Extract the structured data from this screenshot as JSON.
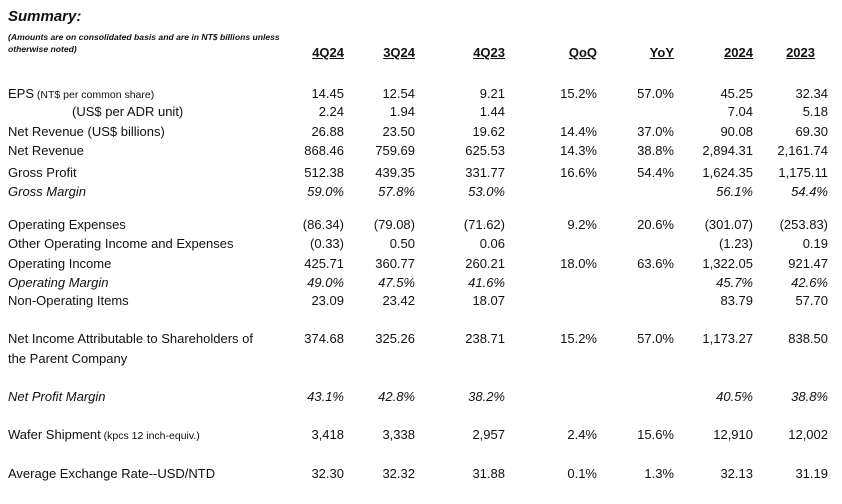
{
  "title": "Summary:",
  "note": "(Amounts are on consolidated basis and are in NT$ billions unless otherwise noted)",
  "columns": [
    "4Q24",
    "3Q24",
    "4Q23",
    "QoQ",
    "YoY",
    "2024",
    "2023"
  ],
  "rows": [
    {
      "label": "EPS",
      "sub": " (NT$ per common share)",
      "values": [
        "14.45",
        "12.54",
        "9.21",
        "15.2%",
        "57.0%",
        "45.25",
        "32.34"
      ]
    },
    {
      "label": "(US$ per ADR unit)",
      "values": [
        "2.24",
        "1.94",
        "1.44",
        "",
        "",
        "7.04",
        "5.18"
      ]
    },
    {
      "label": "Net Revenue (US$ billions)",
      "values": [
        "26.88",
        "23.50",
        "19.62",
        "14.4%",
        "37.0%",
        "90.08",
        "69.30"
      ]
    },
    {
      "label": "Net Revenue",
      "values": [
        "868.46",
        "759.69",
        "625.53",
        "14.3%",
        "38.8%",
        "2,894.31",
        "2,161.74"
      ]
    },
    {
      "label": "Gross Profit",
      "values": [
        "512.38",
        "439.35",
        "331.77",
        "16.6%",
        "54.4%",
        "1,624.35",
        "1,175.11"
      ]
    },
    {
      "label": "Gross Margin",
      "values": [
        "59.0%",
        "57.8%",
        "53.0%",
        "",
        "",
        "56.1%",
        "54.4%"
      ]
    },
    {
      "label": "Operating Expenses",
      "values": [
        "(86.34)",
        "(79.08)",
        "(71.62)",
        "9.2%",
        "20.6%",
        "(301.07)",
        "(253.83)"
      ]
    },
    {
      "label": "Other Operating Income and Expenses",
      "values": [
        "(0.33)",
        "0.50",
        "0.06",
        "",
        "",
        "(1.23)",
        "0.19"
      ]
    },
    {
      "label": "Operating Income",
      "values": [
        "425.71",
        "360.77",
        "260.21",
        "18.0%",
        "63.6%",
        "1,322.05",
        "921.47"
      ]
    },
    {
      "label": "Operating Margin",
      "values": [
        "49.0%",
        "47.5%",
        "41.6%",
        "",
        "",
        "45.7%",
        "42.6%"
      ]
    },
    {
      "label": "Non-Operating Items",
      "values": [
        "23.09",
        "23.42",
        "18.07",
        "",
        "",
        "83.79",
        "57.70"
      ]
    },
    {
      "label": "Net Income Attributable to Shareholders of",
      "label2": "the Parent Company",
      "values": [
        "374.68",
        "325.26",
        "238.71",
        "15.2%",
        "57.0%",
        "1,173.27",
        "838.50"
      ]
    },
    {
      "label": "Net Profit Margin",
      "values": [
        "43.1%",
        "42.8%",
        "38.2%",
        "",
        "",
        "40.5%",
        "38.8%"
      ]
    },
    {
      "label": "Wafer Shipment",
      "sub": " (kpcs 12 inch-equiv.)",
      "values": [
        "3,418",
        "3,338",
        "2,957",
        "2.4%",
        "15.6%",
        "12,910",
        "12,002"
      ]
    },
    {
      "label": "Average Exchange Rate--USD/NTD",
      "values": [
        "32.30",
        "32.32",
        "31.88",
        "0.1%",
        "1.3%",
        "32.13",
        "31.19"
      ]
    }
  ]
}
